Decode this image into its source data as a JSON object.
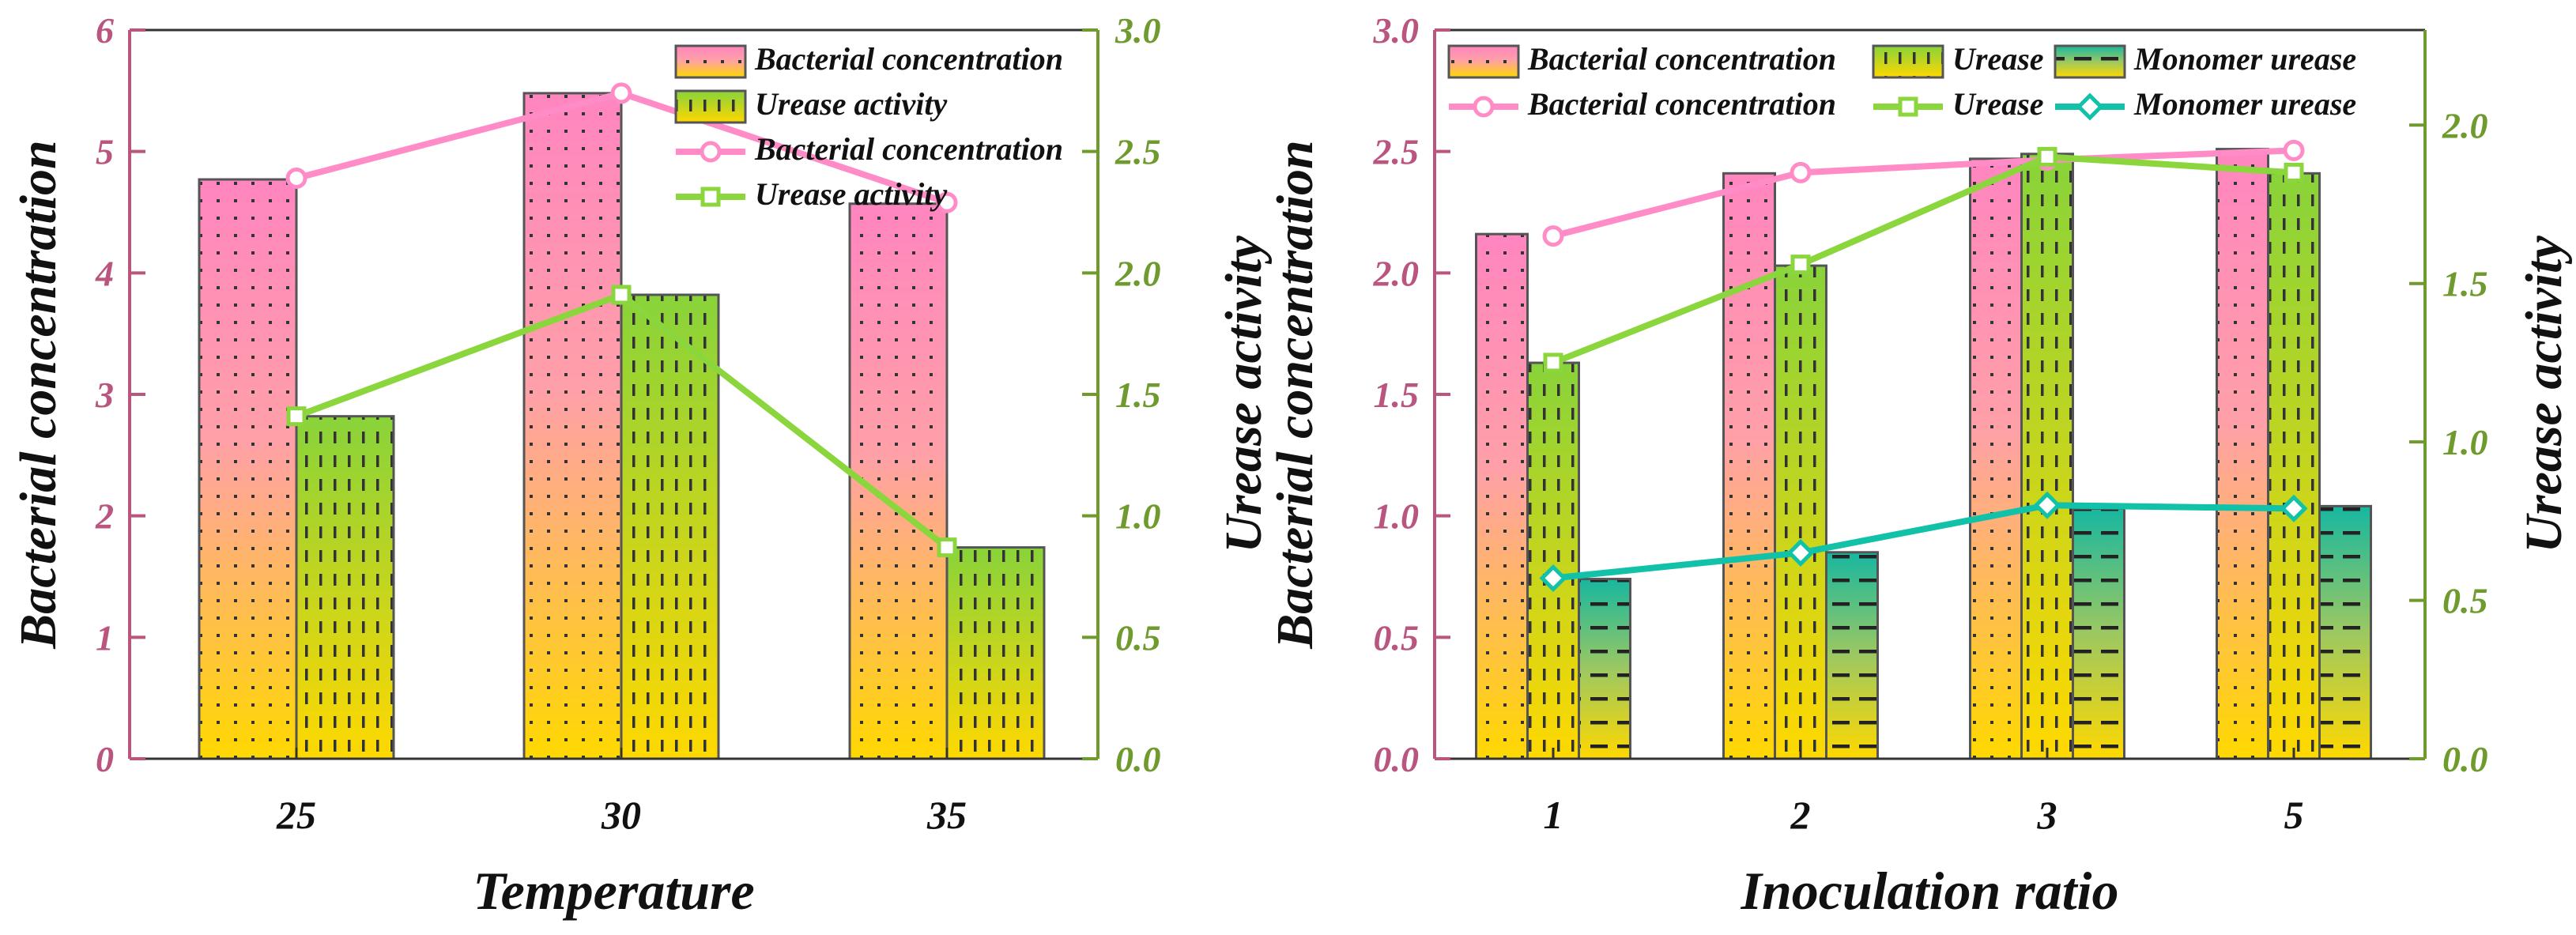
{
  "colors": {
    "left_axis": "#b9557f",
    "right_axis": "#6f9a2e",
    "pink": "#ff85bf",
    "yellow": "#ffd800",
    "green": "#88d33a",
    "teal": "#17b7a0",
    "line_pink": "#ff8cc6",
    "line_green": "#8ad63c",
    "line_teal": "#12c2a8",
    "bar_edge": "#555555"
  },
  "chart_data": [
    {
      "type": "bar",
      "title": "",
      "xlabel": "Temperature",
      "ylabel": "Bacterial concentration",
      "y2label": "Urease activity",
      "categories": [
        "25",
        "30",
        "35"
      ],
      "ylim": [
        0,
        6
      ],
      "y2lim": [
        0,
        3
      ],
      "yticks": [
        "0",
        "1",
        "2",
        "3",
        "4",
        "5",
        "6"
      ],
      "y2ticks": [
        "0.0",
        "0.5",
        "1.0",
        "1.5",
        "2.0",
        "2.5",
        "3.0"
      ],
      "legend_position": "top-right",
      "bar_series": [
        {
          "name": "Bacterial concentration",
          "axis": "left",
          "values": [
            4.77,
            5.48,
            4.57
          ],
          "fill": "pink",
          "hatch": "dots"
        },
        {
          "name": "Urease activity",
          "axis": "left",
          "values": [
            2.82,
            3.82,
            1.74
          ],
          "fill": "green",
          "hatch": "dashes"
        }
      ],
      "line_series": [
        {
          "name": "Bacterial concentration",
          "axis": "right",
          "values": [
            2.39,
            2.74,
            2.29
          ],
          "color": "line_pink",
          "marker": "circle"
        },
        {
          "name": "Urease activity",
          "axis": "right",
          "values": [
            1.41,
            1.91,
            0.87
          ],
          "color": "line_green",
          "marker": "square"
        }
      ]
    },
    {
      "type": "bar",
      "title": "",
      "xlabel": "Inoculation ratio",
      "ylabel": "Bacterial concentration",
      "y2label": "Urease activity",
      "categories": [
        "1",
        "2",
        "3",
        "5"
      ],
      "ylim": [
        0,
        3
      ],
      "y2lim": [
        0,
        2.3
      ],
      "yticks": [
        "0.0",
        "0.5",
        "1.0",
        "1.5",
        "2.0",
        "2.5",
        "3.0"
      ],
      "y2ticks": [
        "0.0",
        "0.5",
        "1.0",
        "1.5",
        "2.0"
      ],
      "y2tick_values": [
        0,
        0.5,
        1.0,
        1.5,
        2.0
      ],
      "legend_position": "top",
      "bar_series": [
        {
          "name": "Bacterial concentration",
          "axis": "left",
          "values": [
            2.16,
            2.41,
            2.47,
            2.51
          ],
          "fill": "pink",
          "hatch": "dots"
        },
        {
          "name": "Urease",
          "axis": "left",
          "values": [
            1.63,
            2.03,
            2.49,
            2.41
          ],
          "fill": "green",
          "hatch": "dashes"
        },
        {
          "name": "Monomer urease",
          "axis": "left",
          "values": [
            0.74,
            0.85,
            1.03,
            1.04
          ],
          "fill": "teal",
          "hatch": "bigdashes"
        }
      ],
      "line_series": [
        {
          "name": "Bacterial concentration",
          "axis": "right",
          "values": [
            1.65,
            1.85,
            1.89,
            1.92
          ],
          "color": "line_pink",
          "marker": "circle"
        },
        {
          "name": "Urease",
          "axis": "right",
          "values": [
            1.25,
            1.56,
            1.9,
            1.85
          ],
          "color": "line_green",
          "marker": "square"
        },
        {
          "name": "Monomer urease",
          "axis": "right",
          "values": [
            0.57,
            0.65,
            0.8,
            0.79
          ],
          "color": "line_teal",
          "marker": "diamond"
        }
      ]
    }
  ]
}
